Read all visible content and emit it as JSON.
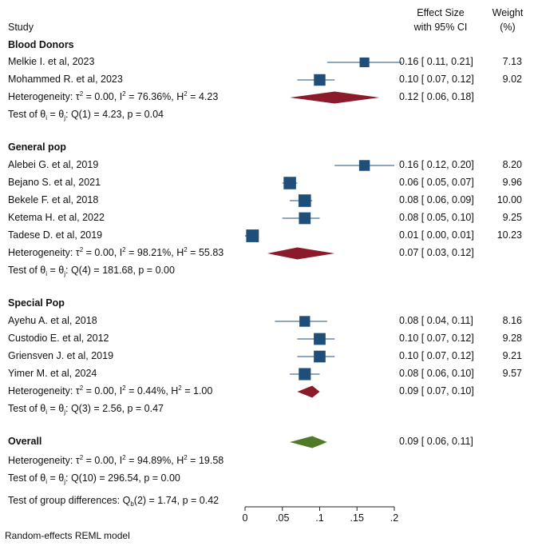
{
  "colors": {
    "study_marker": "#1f4e79",
    "ci_line": "#1f4e79",
    "subgroup_diamond": "#8b1a2a",
    "overall_diamond": "#4f7a28",
    "axis": "#222222"
  },
  "header": {
    "study": "Study",
    "effect_line1": "Effect Size",
    "effect_line2": "with 95% CI",
    "weight_line1": "Weight",
    "weight_line2": "(%)"
  },
  "footer": "Random-effects REML model",
  "chart_data": {
    "type": "forest",
    "xlim": [
      0,
      0.2
    ],
    "ticks": [
      0,
      0.05,
      0.1,
      0.15,
      0.2
    ],
    "tick_labels": [
      "0",
      ".05",
      ".1",
      ".15",
      ".2"
    ],
    "rows": [
      {
        "kind": "group",
        "label": "Blood Donors"
      },
      {
        "kind": "study",
        "label": "Melkie I. et al, 2023",
        "es": 0.16,
        "lo": 0.11,
        "hi": 0.21,
        "es_text": "0.16 [ 0.11,  0.21]",
        "weight": "7.13"
      },
      {
        "kind": "study",
        "label": "Mohammed R. et al, 2023",
        "es": 0.1,
        "lo": 0.07,
        "hi": 0.12,
        "es_text": "0.10 [ 0.07,  0.12]",
        "weight": "9.02"
      },
      {
        "kind": "subtotal",
        "het": {
          "tau2": "0.00",
          "i2": "76.36%",
          "h2": "4.23"
        },
        "es": 0.12,
        "lo": 0.06,
        "hi": 0.18,
        "es_text": "0.12 [ 0.06,  0.18]"
      },
      {
        "kind": "test",
        "q_df": "1",
        "q": "4.23",
        "p": "0.04"
      },
      {
        "kind": "blank"
      },
      {
        "kind": "group",
        "label": "General pop"
      },
      {
        "kind": "study",
        "label": "Alebei G. et al, 2019",
        "es": 0.16,
        "lo": 0.12,
        "hi": 0.2,
        "es_text": "0.16 [ 0.12,  0.20]",
        "weight": "8.20"
      },
      {
        "kind": "study",
        "label": "Bejano S. et al, 2021",
        "es": 0.06,
        "lo": 0.05,
        "hi": 0.07,
        "es_text": "0.06 [ 0.05,  0.07]",
        "weight": "9.96"
      },
      {
        "kind": "study",
        "label": "Bekele F. et al, 2018",
        "es": 0.08,
        "lo": 0.06,
        "hi": 0.09,
        "es_text": "0.08 [ 0.06,  0.09]",
        "weight": "10.00"
      },
      {
        "kind": "study",
        "label": "Ketema H. et al, 2022",
        "es": 0.08,
        "lo": 0.05,
        "hi": 0.1,
        "es_text": "0.08 [ 0.05,  0.10]",
        "weight": "9.25"
      },
      {
        "kind": "study",
        "label": "Tadese D. et al, 2019",
        "es": 0.01,
        "lo": 0.0,
        "hi": 0.01,
        "es_text": "0.01 [ 0.00,  0.01]",
        "weight": "10.23"
      },
      {
        "kind": "subtotal",
        "het": {
          "tau2": "0.00",
          "i2": "98.21%",
          "h2": "55.83"
        },
        "es": 0.07,
        "lo": 0.03,
        "hi": 0.12,
        "es_text": "0.07 [ 0.03,  0.12]"
      },
      {
        "kind": "test",
        "q_df": "4",
        "q": "181.68",
        "p": "0.00"
      },
      {
        "kind": "blank"
      },
      {
        "kind": "group",
        "label": "Special Pop"
      },
      {
        "kind": "study",
        "label": "Ayehu A. et al, 2018",
        "es": 0.08,
        "lo": 0.04,
        "hi": 0.11,
        "es_text": "0.08 [ 0.04,  0.11]",
        "weight": "8.16"
      },
      {
        "kind": "study",
        "label": "Custodio E. et al, 2012",
        "es": 0.1,
        "lo": 0.07,
        "hi": 0.12,
        "es_text": "0.10 [ 0.07,  0.12]",
        "weight": "9.28"
      },
      {
        "kind": "study",
        "label": "Griensven J. et al, 2019",
        "es": 0.1,
        "lo": 0.07,
        "hi": 0.12,
        "es_text": "0.10 [ 0.07,  0.12]",
        "weight": "9.21"
      },
      {
        "kind": "study",
        "label": "Yimer M. et al, 2024",
        "es": 0.08,
        "lo": 0.06,
        "hi": 0.1,
        "es_text": "0.08 [ 0.06,  0.10]",
        "weight": "9.57"
      },
      {
        "kind": "subtotal",
        "het": {
          "tau2": "0.00",
          "i2": "0.44%",
          "h2": "1.00"
        },
        "es": 0.09,
        "lo": 0.07,
        "hi": 0.1,
        "es_text": "0.09 [ 0.07,  0.10]"
      },
      {
        "kind": "test",
        "q_df": "3",
        "q": "2.56",
        "p": "0.47"
      },
      {
        "kind": "blank"
      },
      {
        "kind": "overall",
        "label": "Overall",
        "es": 0.09,
        "lo": 0.06,
        "hi": 0.11,
        "es_text": "0.09 [ 0.06,  0.11]"
      },
      {
        "kind": "het_only",
        "het": {
          "tau2": "0.00",
          "i2": "94.89%",
          "h2": "19.58"
        }
      },
      {
        "kind": "test",
        "q_df": "10",
        "q": "296.54",
        "p": "0.00"
      },
      {
        "kind": "group_test",
        "df": "2",
        "q": "1.74",
        "p": "0.42"
      }
    ]
  }
}
